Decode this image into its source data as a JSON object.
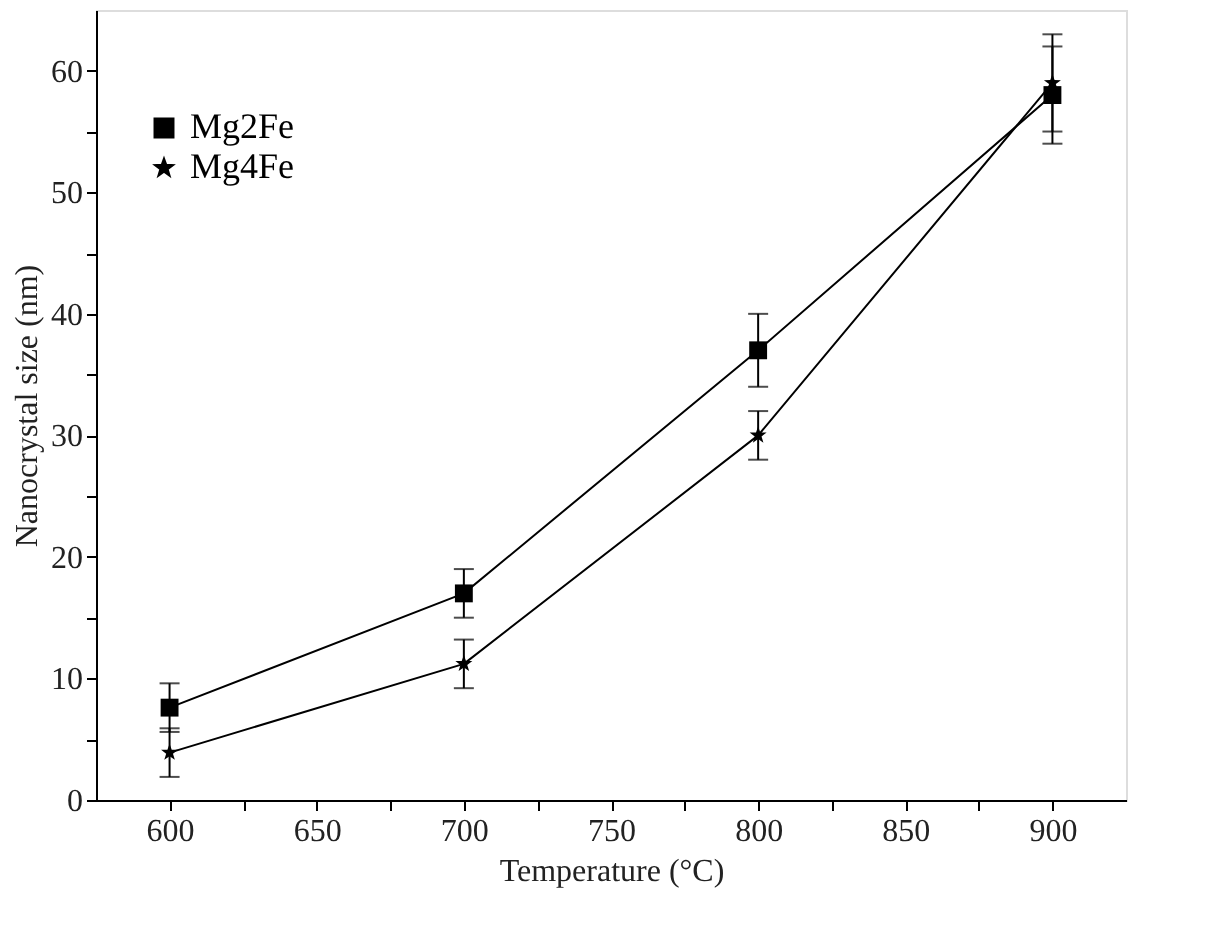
{
  "chart_data": {
    "type": "line",
    "xlabel": "Temperature (°C)",
    "ylabel": "Nanocrystal size (nm)",
    "x": [
      600,
      700,
      800,
      900
    ],
    "series": [
      {
        "name": "Mg2Fe",
        "color": "#000000",
        "marker": "square",
        "values": [
          7.6,
          17,
          37,
          58
        ],
        "errors": [
          2,
          2,
          3,
          4
        ]
      },
      {
        "name": "Mg4Fe",
        "color": "#000000",
        "marker": "star",
        "values": [
          3.9,
          11.2,
          30,
          59
        ],
        "errors": [
          2,
          2,
          2,
          4
        ]
      }
    ],
    "xlim": [
      575,
      925
    ],
    "xticks": [
      600,
      {
        "value": 625,
        "label": null
      },
      650,
      {
        "value": 675,
        "label": null
      },
      700,
      {
        "value": 725,
        "label": null
      },
      750,
      {
        "value": 775,
        "label": null
      },
      800,
      {
        "value": 825,
        "label": null
      },
      850,
      {
        "value": 875,
        "label": null
      },
      900
    ],
    "ylim": [
      0,
      65
    ],
    "yticks": [
      0,
      {
        "value": 5,
        "label": null
      },
      10,
      {
        "value": 15,
        "label": null
      },
      20,
      {
        "value": 25,
        "label": null
      },
      30,
      {
        "value": 35,
        "label": null
      },
      40,
      {
        "value": 45,
        "label": null
      },
      50,
      {
        "value": 55,
        "label": null
      },
      60
    ],
    "grid": false,
    "legend": "top left",
    "line_style": "solid"
  }
}
